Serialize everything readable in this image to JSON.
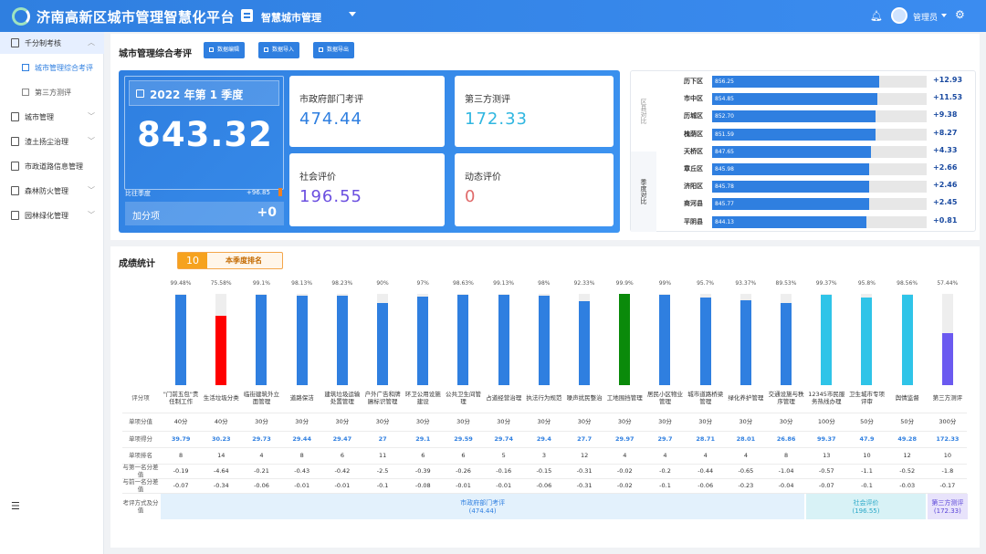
{
  "header": {
    "app_title": "济南高新区城市管理智慧化平台",
    "module_title": "智慧城市管理",
    "user_name": "管理员",
    "logo_icon": "app-logo",
    "module_icon": "clipboard-icon",
    "bell_icon": "bell-icon",
    "gear_icon": "gear-icon"
  },
  "sidebar": {
    "items": [
      {
        "label": "千分制考核",
        "active": true,
        "icon": "doc-icon",
        "submenu": true
      },
      {
        "label": "城市管理综合考评",
        "sub": true,
        "active": true
      },
      {
        "label": "第三方测评",
        "sub": true
      },
      {
        "label": "城市管理",
        "icon": "doc-icon",
        "submenu": true
      },
      {
        "label": "渣土扬尘治理",
        "icon": "doc-icon",
        "submenu": true
      },
      {
        "label": "市政道路信息管理",
        "icon": "doc-icon"
      },
      {
        "label": "森林防火管理",
        "icon": "doc-icon",
        "submenu": true
      },
      {
        "label": "园林绿化管理",
        "icon": "doc-icon",
        "submenu": true
      }
    ],
    "menu_icon": "menu-icon"
  },
  "evaluation": {
    "title": "城市管理综合考评",
    "buttons": [
      "数据编辑",
      "数据导入",
      "数据导出"
    ],
    "quarter": "2022 年第 1 季度",
    "total_score": "843.32",
    "compare_label": "比往季度",
    "compare_value": "+96.85",
    "bonus_label": "加分项",
    "bonus_value": "+0",
    "cards": [
      {
        "label": "市政府部门考评",
        "value": "474.44",
        "color": "#2f7fe0"
      },
      {
        "label": "第三方测评",
        "value": "172.33",
        "color": "#2fb6e0"
      },
      {
        "label": "社会评价",
        "value": "196.55",
        "color": "#6b4fe0"
      },
      {
        "label": "动态评价",
        "value": "0",
        "color": "#e06a6a"
      }
    ]
  },
  "comparison": {
    "tabs": [
      "区县对比",
      "季度对比"
    ],
    "rows": [
      {
        "name": "历下区",
        "value": "856.25",
        "pct": 0.78,
        "diff": "+12.93"
      },
      {
        "name": "市中区",
        "value": "854.85",
        "pct": 0.77,
        "diff": "+11.53"
      },
      {
        "name": "历城区",
        "value": "852.70",
        "pct": 0.76,
        "diff": "+9.38"
      },
      {
        "name": "槐荫区",
        "value": "851.59",
        "pct": 0.76,
        "diff": "+8.27"
      },
      {
        "name": "天桥区",
        "value": "847.65",
        "pct": 0.74,
        "diff": "+4.33"
      },
      {
        "name": "章丘区",
        "value": "845.98",
        "pct": 0.73,
        "diff": "+2.66"
      },
      {
        "name": "济阳区",
        "value": "845.78",
        "pct": 0.73,
        "diff": "+2.46"
      },
      {
        "name": "商河县",
        "value": "845.77",
        "pct": 0.73,
        "diff": "+2.45"
      },
      {
        "name": "平阴县",
        "value": "844.13",
        "pct": 0.72,
        "diff": "+0.81"
      }
    ]
  },
  "results": {
    "title": "成绩统计",
    "rank_number": "10",
    "rank_label": "本季度排名",
    "row_labels": [
      "评分项",
      "单项分值",
      "单项得分",
      "单项排名",
      "与第一名分差值",
      "与前一名分差值",
      "考评方式及分值"
    ],
    "items": [
      {
        "name": "\"门前五包\"责任制工作",
        "pct": "99.48%",
        "fill": 0.9948,
        "color": "#2f7fe0",
        "max": "40分",
        "score": "39.79",
        "rank": "8",
        "diff_first": "-0.19",
        "diff_prev": "-0.07"
      },
      {
        "name": "生活垃圾分类",
        "pct": "75.58%",
        "fill": 0.7558,
        "color": "#ff0000",
        "max": "40分",
        "score": "30.23",
        "rank": "14",
        "diff_first": "-4.64",
        "diff_prev": "-0.34"
      },
      {
        "name": "临街建筑外立面管理",
        "pct": "99.1%",
        "fill": 0.991,
        "color": "#2f7fe0",
        "max": "30分",
        "score": "29.73",
        "rank": "4",
        "diff_first": "-0.21",
        "diff_prev": "-0.06"
      },
      {
        "name": "道路保洁",
        "pct": "98.13%",
        "fill": 0.9813,
        "color": "#2f7fe0",
        "max": "30分",
        "score": "29.44",
        "rank": "8",
        "diff_first": "-0.43",
        "diff_prev": "-0.01"
      },
      {
        "name": "建筑垃圾运输处置管理",
        "pct": "98.23%",
        "fill": 0.9823,
        "color": "#2f7fe0",
        "max": "30分",
        "score": "29.47",
        "rank": "6",
        "diff_first": "-0.42",
        "diff_prev": "-0.01"
      },
      {
        "name": "户外广告和牌匾标识管理",
        "pct": "90%",
        "fill": 0.9,
        "color": "#2f7fe0",
        "max": "30分",
        "score": "27",
        "rank": "11",
        "diff_first": "-2.5",
        "diff_prev": "-0.1"
      },
      {
        "name": "环卫公用设施建设",
        "pct": "97%",
        "fill": 0.97,
        "color": "#2f7fe0",
        "max": "30分",
        "score": "29.1",
        "rank": "6",
        "diff_first": "-0.39",
        "diff_prev": "-0.08"
      },
      {
        "name": "公共卫生间管理",
        "pct": "98.63%",
        "fill": 0.9863,
        "color": "#2f7fe0",
        "max": "30分",
        "score": "29.59",
        "rank": "6",
        "diff_first": "-0.26",
        "diff_prev": "-0.01"
      },
      {
        "name": "占道经营治理",
        "pct": "99.13%",
        "fill": 0.9913,
        "color": "#2f7fe0",
        "max": "30分",
        "score": "29.74",
        "rank": "5",
        "diff_first": "-0.16",
        "diff_prev": "-0.01"
      },
      {
        "name": "执法行为规范",
        "pct": "98%",
        "fill": 0.98,
        "color": "#2f7fe0",
        "max": "30分",
        "score": "29.4",
        "rank": "3",
        "diff_first": "-0.15",
        "diff_prev": "-0.06"
      },
      {
        "name": "噪声扰民整治",
        "pct": "92.33%",
        "fill": 0.9233,
        "color": "#2f7fe0",
        "max": "30分",
        "score": "27.7",
        "rank": "12",
        "diff_first": "-0.31",
        "diff_prev": "-0.31"
      },
      {
        "name": "工地围挡管理",
        "pct": "99.9%",
        "fill": 0.999,
        "color": "#0a8a0a",
        "max": "30分",
        "score": "29.97",
        "rank": "4",
        "diff_first": "-0.02",
        "diff_prev": "-0.02"
      },
      {
        "name": "居民小区物业管理",
        "pct": "99%",
        "fill": 0.99,
        "color": "#2f7fe0",
        "max": "30分",
        "score": "29.7",
        "rank": "4",
        "diff_first": "-0.2",
        "diff_prev": "-0.1"
      },
      {
        "name": "城市道路桥梁管理",
        "pct": "95.7%",
        "fill": 0.957,
        "color": "#2f7fe0",
        "max": "30分",
        "score": "28.71",
        "rank": "4",
        "diff_first": "-0.44",
        "diff_prev": "-0.06"
      },
      {
        "name": "绿化养护管理",
        "pct": "93.37%",
        "fill": 0.9337,
        "color": "#2f7fe0",
        "max": "30分",
        "score": "28.01",
        "rank": "4",
        "diff_first": "-0.65",
        "diff_prev": "-0.23"
      },
      {
        "name": "交通设施与秩序管理",
        "pct": "89.53%",
        "fill": 0.8953,
        "color": "#2f7fe0",
        "max": "30分",
        "score": "26.86",
        "rank": "8",
        "diff_first": "-1.04",
        "diff_prev": "-0.04"
      },
      {
        "name": "12345市民服务热线办理",
        "pct": "99.37%",
        "fill": 0.9937,
        "color": "#2fc4e8",
        "max": "100分",
        "score": "99.37",
        "rank": "13",
        "diff_first": "-0.57",
        "diff_prev": "-0.07"
      },
      {
        "name": "卫生城市专项评审",
        "pct": "95.8%",
        "fill": 0.958,
        "color": "#2fc4e8",
        "max": "50分",
        "score": "47.9",
        "rank": "10",
        "diff_first": "-1.1",
        "diff_prev": "-0.1"
      },
      {
        "name": "舆情监督",
        "pct": "98.56%",
        "fill": 0.9856,
        "color": "#2fc4e8",
        "max": "50分",
        "score": "49.28",
        "rank": "12",
        "diff_first": "-0.52",
        "diff_prev": "-0.03"
      },
      {
        "name": "第三方测评",
        "pct": "57.44%",
        "fill": 0.5744,
        "color": "#6b5af0",
        "max": "300分",
        "score": "172.33",
        "rank": "10",
        "diff_first": "-1.8",
        "diff_prev": "-0.17"
      }
    ],
    "footer": [
      {
        "label": "市政府部门考评",
        "value": "(474.44)",
        "bg": "#e3f1fc",
        "color": "#2f7fe0",
        "span": 16
      },
      {
        "label": "社会评价",
        "value": "(196.55)",
        "bg": "#d8f2f6",
        "color": "#2aa8c8",
        "span": 3
      },
      {
        "label": "第三方测评",
        "value": "(172.33)",
        "bg": "#e8e3fb",
        "color": "#5a45d8",
        "span": 1
      }
    ]
  }
}
